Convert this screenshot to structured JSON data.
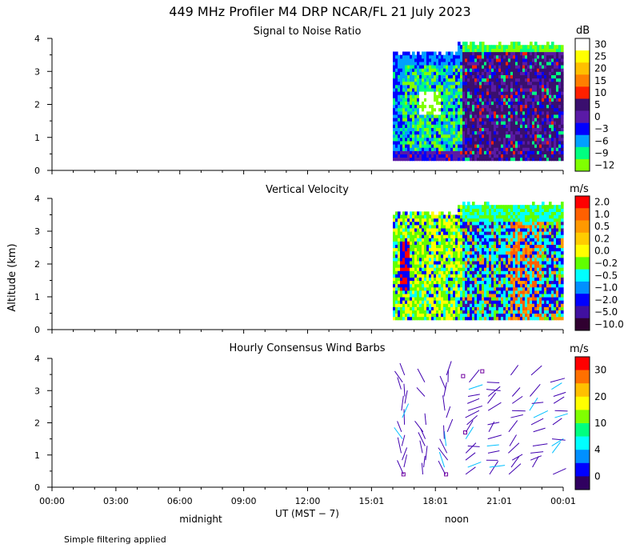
{
  "title": "449 MHz Profiler M4 DRP NCAR/FL 21 July 2023",
  "footer_note": "Simple filtering applied",
  "chart_data": [
    {
      "type": "heatmap",
      "title": "Signal to Noise Ratio",
      "ylabel": "Altitude (km)",
      "ylim": [
        0,
        4
      ],
      "yticks": [
        "0",
        "1",
        "2",
        "3",
        "4"
      ],
      "xlim_hours": [
        0,
        24
      ],
      "data_window_hours": [
        16.0,
        24.0
      ],
      "altitude_range_km": [
        0.3,
        3.9
      ],
      "colorbar": {
        "unit": "dB",
        "labels": [
          "30",
          "25",
          "20",
          "15",
          "10",
          "5",
          "0",
          "−3",
          "−6",
          "−9",
          "−12"
        ],
        "colors": [
          "#ffffff",
          "#ffff00",
          "#ffc000",
          "#ff7f00",
          "#ff2000",
          "#3a0f6e",
          "#5a1aa6",
          "#0000ff",
          "#00a0ff",
          "#00ff80",
          "#80ff00"
        ]
      }
    },
    {
      "type": "heatmap",
      "title": "Vertical Velocity",
      "ylim": [
        0,
        4
      ],
      "yticks": [
        "0",
        "1",
        "2",
        "3",
        "4"
      ],
      "xlim_hours": [
        0,
        24
      ],
      "data_window_hours": [
        16.0,
        24.0
      ],
      "altitude_range_km": [
        0.3,
        3.9
      ],
      "colorbar": {
        "unit": "m/s",
        "labels": [
          "2.0",
          "1.0",
          "0.5",
          "0.2",
          "0.0",
          "−0.2",
          "−0.5",
          "−1.0",
          "−2.0",
          "−5.0",
          "−10.0"
        ],
        "colors": [
          "#ff0000",
          "#ff6000",
          "#ff9900",
          "#ffcc00",
          "#ffff00",
          "#60ff00",
          "#00ffff",
          "#0090ff",
          "#0000ff",
          "#4010a0",
          "#300030"
        ]
      }
    },
    {
      "type": "scatter",
      "title": "Hourly Consensus Wind Barbs",
      "ylim": [
        0,
        4
      ],
      "yticks": [
        "0",
        "1",
        "2",
        "3",
        "4"
      ],
      "xlim_hours": [
        0,
        24
      ],
      "barb_hours": [
        16.5,
        17.5,
        18.5,
        19.5,
        20.5,
        21.5,
        22.5,
        23.5
      ],
      "colorbar": {
        "unit": "m/s",
        "labels": [
          "30",
          "20",
          "10",
          "4",
          "0"
        ],
        "colors": [
          "#ff0000",
          "#ff7000",
          "#ffc000",
          "#ffff00",
          "#80ff00",
          "#00ff80",
          "#00ffff",
          "#0090ff",
          "#0000ff",
          "#300060"
        ]
      }
    }
  ],
  "xaxis": {
    "tick_labels": [
      "00:00",
      "03:00",
      "06:00",
      "09:00",
      "12:00",
      "15:01",
      "18:01",
      "21:01",
      "00:01"
    ],
    "label": "UT  (MST − 7)",
    "markers": [
      "midnight",
      "noon"
    ]
  }
}
